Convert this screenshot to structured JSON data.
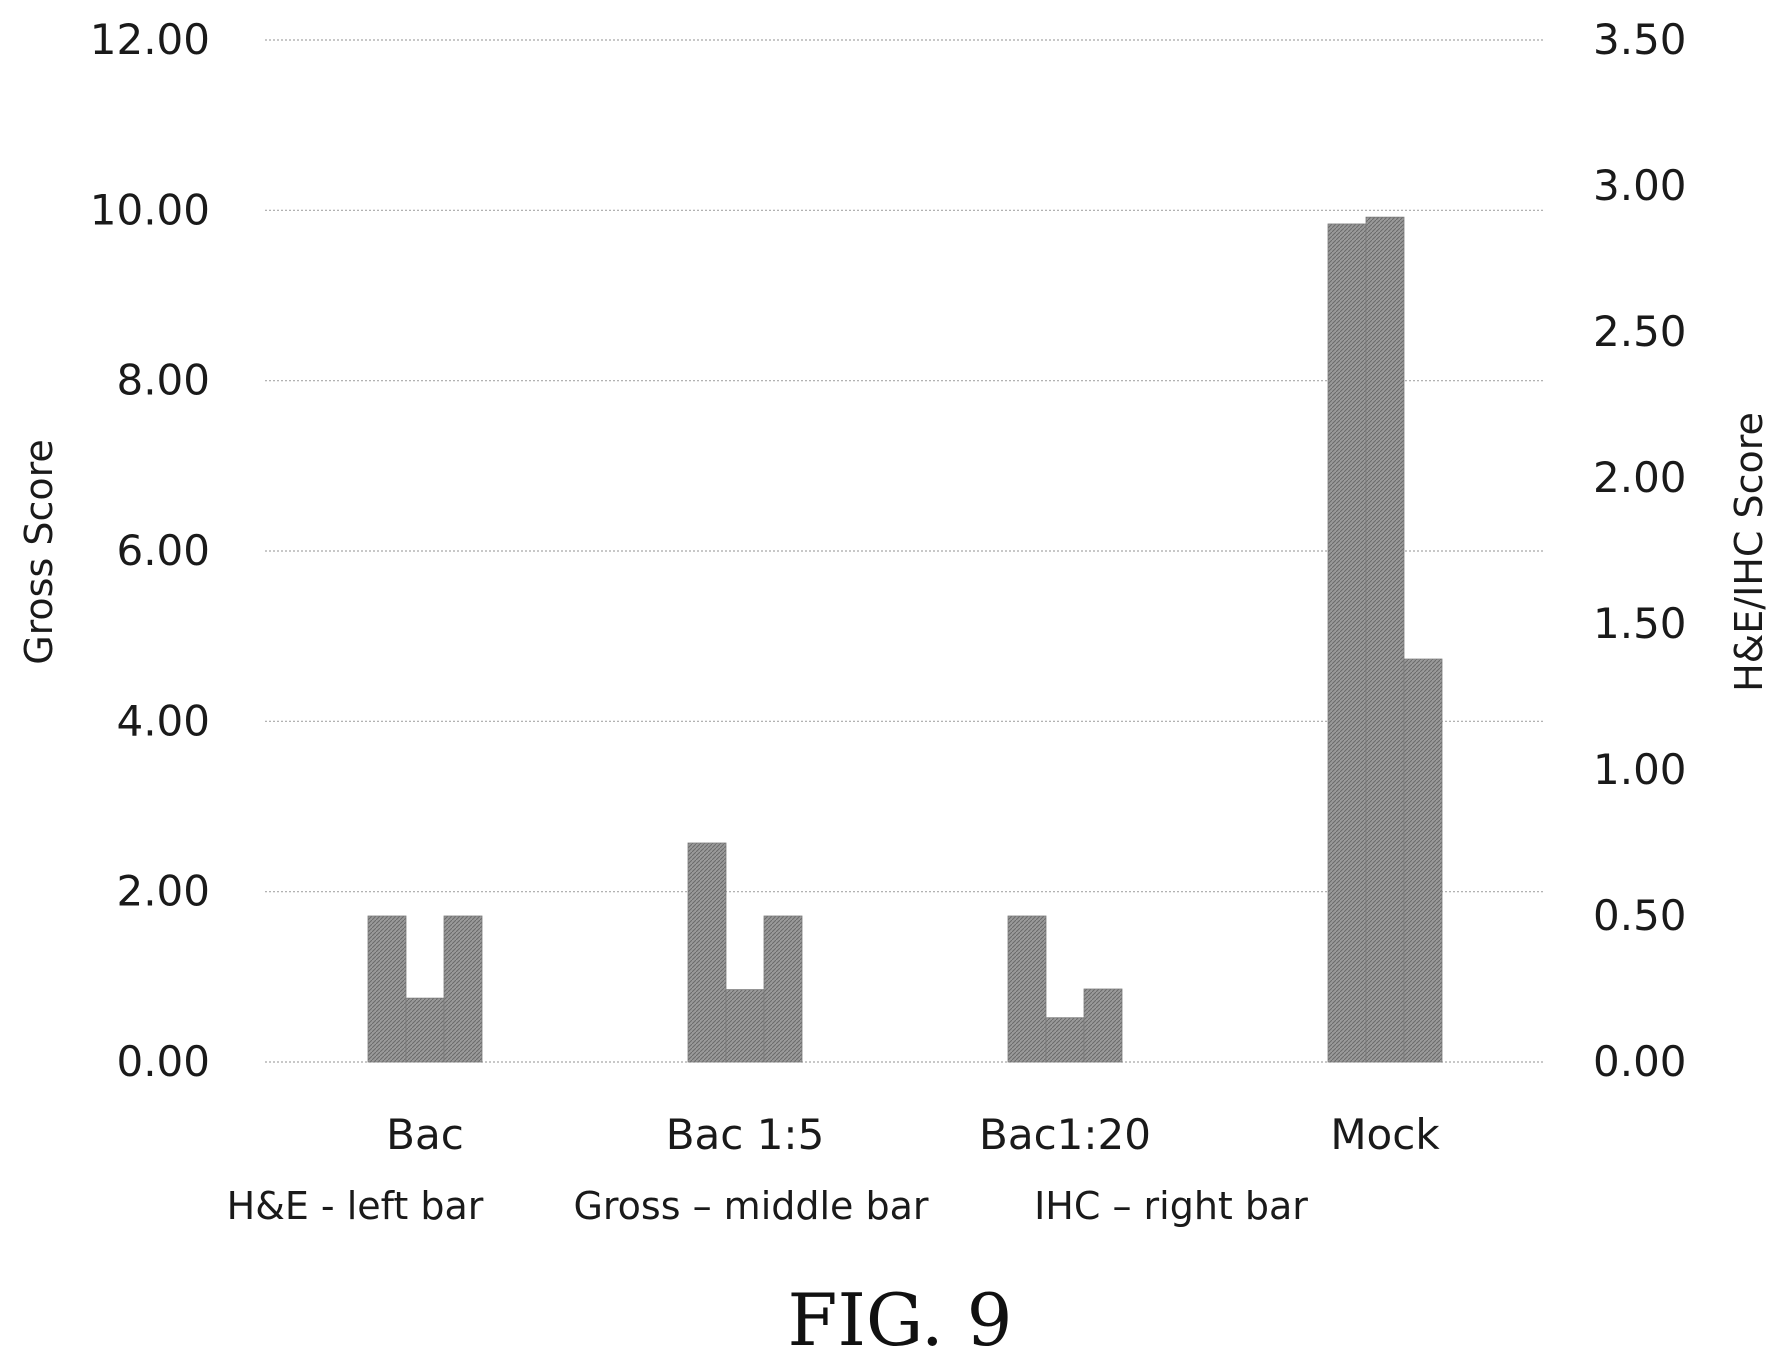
{
  "chart_data": {
    "type": "bar",
    "categories": [
      "Bac",
      "Bac 1:5",
      "Bac1:20",
      "Mock"
    ],
    "series": [
      {
        "name": "H&E",
        "axis": "right",
        "values": [
          0.5,
          0.75,
          0.5,
          2.87
        ]
      },
      {
        "name": "Gross",
        "axis": "left",
        "values": [
          0.75,
          0.85,
          0.52,
          9.92
        ]
      },
      {
        "name": "IHC",
        "axis": "right",
        "values": [
          0.5,
          0.5,
          0.25,
          1.38
        ]
      }
    ],
    "ylabel": "Gross Score",
    "ylabel_right": "H&E/IHC Score",
    "ylim": [
      0,
      12
    ],
    "ylim_right": [
      0,
      3.5
    ],
    "yticks": [
      "0.00",
      "2.00",
      "4.00",
      "6.00",
      "8.00",
      "10.00",
      "12.00"
    ],
    "yticks_right": [
      "0.00",
      "0.50",
      "1.00",
      "1.50",
      "2.00",
      "2.50",
      "3.00",
      "3.50"
    ],
    "grid": true,
    "legend_notes": [
      "H&E - left bar",
      "Gross – middle bar",
      "IHC – right bar"
    ],
    "bar_color": "#8c8c8c",
    "caption": "FIG. 9"
  }
}
